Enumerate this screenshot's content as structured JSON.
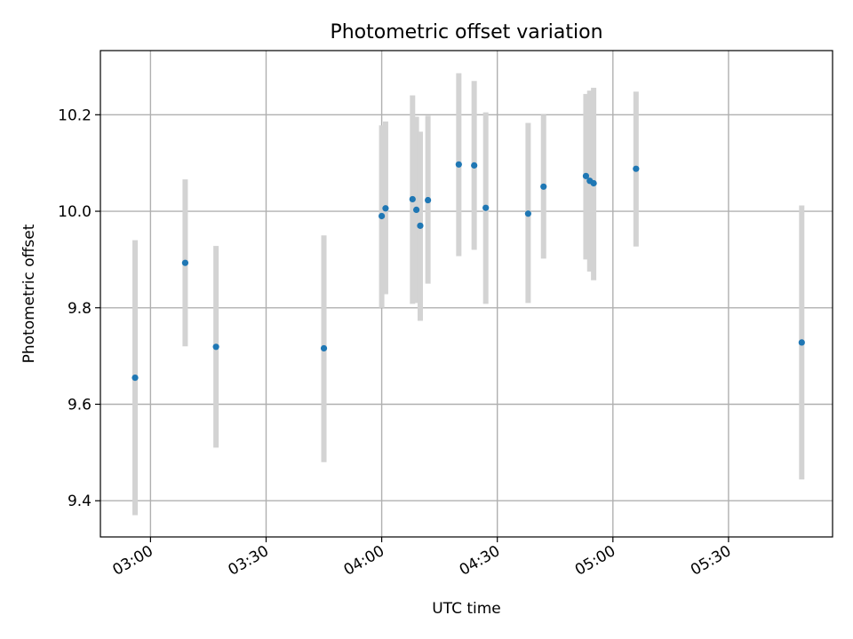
{
  "chart_data": {
    "type": "scatter",
    "title": "Photometric offset variation",
    "xlabel": "UTC time",
    "ylabel": "Photometric offset",
    "x_tick_labels": [
      "03:00",
      "03:30",
      "04:00",
      "04:30",
      "05:00",
      "05:30"
    ],
    "y_tick_labels": [
      "9.4",
      "9.6",
      "9.8",
      "10.0",
      "10.2"
    ],
    "x_ticks": [
      "03:00",
      "03:30",
      "04:00",
      "04:30",
      "05:00",
      "05:30"
    ],
    "y_ticks": [
      9.4,
      9.6,
      9.8,
      10.0,
      10.2
    ],
    "xlim": [
      "02:47",
      "05:57"
    ],
    "ylim": [
      9.325,
      10.333
    ],
    "grid": true,
    "colors": {
      "marker": "#1f77b4",
      "errorbar": "#d3d3d3"
    },
    "points": [
      {
        "x": "02:56",
        "y": 9.655,
        "low": 9.37,
        "high": 9.94
      },
      {
        "x": "03:09",
        "y": 9.893,
        "low": 9.72,
        "high": 10.066
      },
      {
        "x": "03:17",
        "y": 9.719,
        "low": 9.51,
        "high": 9.928
      },
      {
        "x": "03:45",
        "y": 9.716,
        "low": 9.48,
        "high": 9.95
      },
      {
        "x": "04:00",
        "y": 9.99,
        "low": 9.8,
        "high": 10.178
      },
      {
        "x": "04:01",
        "y": 10.006,
        "low": 9.828,
        "high": 10.186
      },
      {
        "x": "04:08",
        "y": 10.025,
        "low": 9.808,
        "high": 10.24
      },
      {
        "x": "04:09",
        "y": 10.003,
        "low": 9.81,
        "high": 10.196
      },
      {
        "x": "04:10",
        "y": 9.97,
        "low": 9.773,
        "high": 10.165
      },
      {
        "x": "04:12",
        "y": 10.023,
        "low": 9.85,
        "high": 10.198
      },
      {
        "x": "04:20",
        "y": 10.097,
        "low": 9.907,
        "high": 10.286
      },
      {
        "x": "04:24",
        "y": 10.095,
        "low": 9.92,
        "high": 10.27
      },
      {
        "x": "04:27",
        "y": 10.007,
        "low": 9.808,
        "high": 10.205
      },
      {
        "x": "04:38",
        "y": 9.995,
        "low": 9.81,
        "high": 10.183
      },
      {
        "x": "04:42",
        "y": 10.051,
        "low": 9.902,
        "high": 10.2
      },
      {
        "x": "04:53",
        "y": 10.073,
        "low": 9.9,
        "high": 10.243
      },
      {
        "x": "04:54",
        "y": 10.063,
        "low": 9.875,
        "high": 10.25
      },
      {
        "x": "04:55",
        "y": 10.058,
        "low": 9.857,
        "high": 10.256
      },
      {
        "x": "05:06",
        "y": 10.088,
        "low": 9.927,
        "high": 10.248
      },
      {
        "x": "05:49",
        "y": 9.728,
        "low": 9.444,
        "high": 10.012
      }
    ]
  }
}
